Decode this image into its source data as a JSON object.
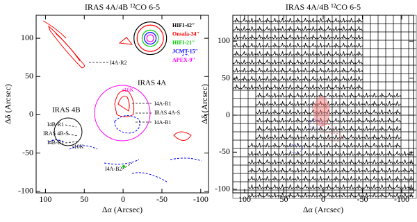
{
  "chart_data": [
    {
      "type": "contour",
      "title": "IRAS 4A/4B ¹²CO 6-5",
      "xlabel": "Δα (Arcsec)",
      "ylabel": "Δδ (Arcsec)",
      "xlim": [
        112,
        -110
      ],
      "ylim": [
        -102,
        130
      ],
      "xticks": [
        100,
        50,
        0,
        -50,
        -100
      ],
      "yticks": [
        -100,
        -50,
        0,
        50,
        100
      ],
      "series": [
        {
          "name": "HIFI-42″",
          "color": "#000000",
          "values": [
            42
          ]
        },
        {
          "name": "Onsala-34″",
          "color": "#ff0000",
          "values": [
            34
          ]
        },
        {
          "name": "HIFI-21″",
          "color": "#00cc00",
          "values": [
            21
          ]
        },
        {
          "name": "JCMT-15″",
          "color": "#0000ff",
          "values": [
            15
          ]
        },
        {
          "name": "APEX-9″",
          "color": "#ff00ff",
          "values": [
            9
          ]
        }
      ],
      "annotations": [
        "I4A-R2",
        "IRAS 4A",
        "IRAS 4B",
        "I4A-R1",
        "IRAS 4A-S",
        "I4A-B1",
        "I4B-R1",
        "IRAS 4B-S",
        "I4B-B1",
        "I4A-B2",
        "r10K",
        "r10K"
      ]
    },
    {
      "type": "spectra-map",
      "title": "IRAS 4A/4B ¹²CO 6-5",
      "xlabel": "Δα (Arcsec)",
      "ylabel": "Δδ (Arcsec)",
      "xlim": [
        115,
        -115
      ],
      "ylim": [
        -105,
        135
      ],
      "xticks": [
        100,
        50,
        0,
        -50,
        -100
      ],
      "yticks": [
        -100,
        -50,
        0,
        50,
        100
      ]
    }
  ]
}
